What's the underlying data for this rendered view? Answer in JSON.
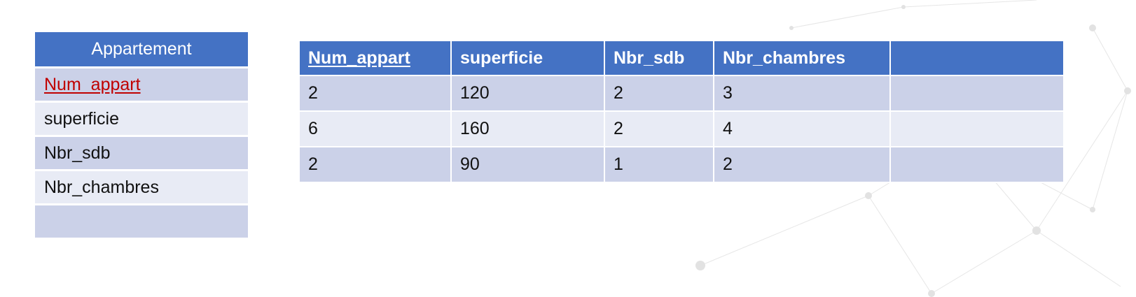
{
  "entity": {
    "title": "Appartement",
    "attributes": [
      {
        "label": "Num_appart",
        "is_key": true
      },
      {
        "label": "superficie",
        "is_key": false
      },
      {
        "label": "Nbr_sdb",
        "is_key": false
      },
      {
        "label": "Nbr_chambres",
        "is_key": false
      },
      {
        "label": "",
        "is_key": false
      }
    ]
  },
  "table": {
    "columns": [
      "Num_appart",
      "superficie",
      "Nbr_sdb",
      "Nbr_chambres",
      ""
    ],
    "rows": [
      [
        "2",
        "120",
        "2",
        "3",
        ""
      ],
      [
        "6",
        "160",
        "2",
        "4",
        ""
      ],
      [
        "2",
        "90",
        "1",
        "2",
        ""
      ]
    ]
  },
  "colors": {
    "header": "#4472c4",
    "row_dark": "#cbd1e8",
    "row_light": "#e8ebf5",
    "key_text": "#c00000"
  }
}
